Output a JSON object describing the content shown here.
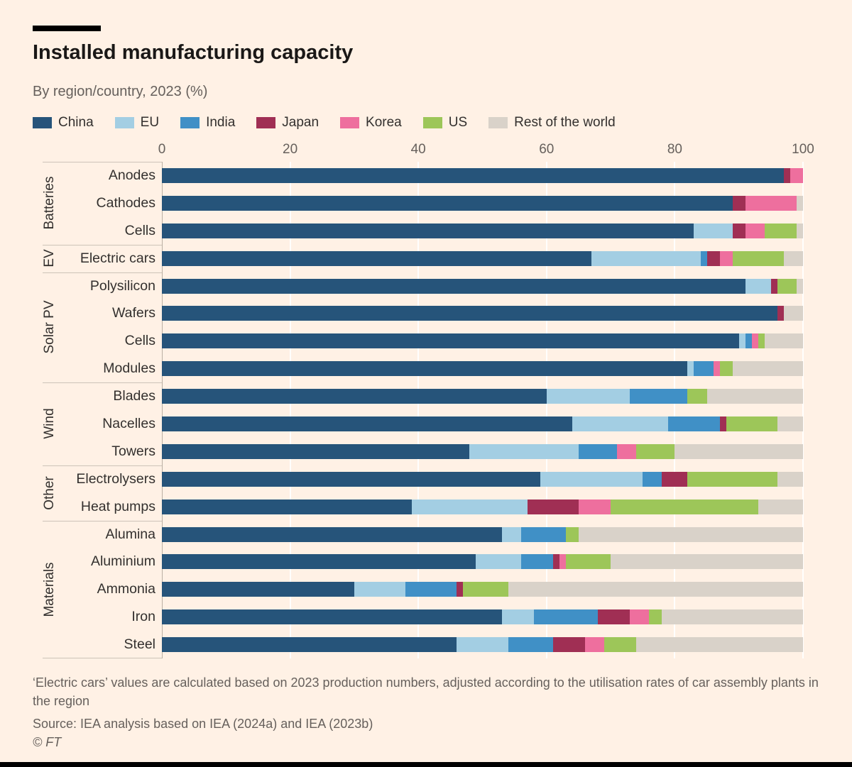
{
  "header": {
    "title": "Installed manufacturing capacity",
    "subtitle": "By region/country, 2023 (%)"
  },
  "colors": {
    "background": "#fff1e5",
    "rule": "#000000",
    "gridline": "#ffffff",
    "axis_line": "#b9afa3",
    "text_dark": "#33302e",
    "text_grey": "#66605c"
  },
  "legend": [
    {
      "label": "China",
      "color": "#26547a"
    },
    {
      "label": "EU",
      "color": "#a3cee3"
    },
    {
      "label": "India",
      "color": "#4090c6"
    },
    {
      "label": "Japan",
      "color": "#a02f54"
    },
    {
      "label": "Korea",
      "color": "#ee6f9e"
    },
    {
      "label": "US",
      "color": "#9dc659"
    },
    {
      "label": "Rest of the world",
      "color": "#d9d2c9"
    }
  ],
  "chart_data": {
    "type": "bar",
    "stacked": true,
    "orientation": "horizontal",
    "unit": "%",
    "xlim": [
      0,
      100
    ],
    "xticks": [
      0,
      20,
      40,
      60,
      80,
      100
    ],
    "grid": true,
    "legend_position": "top",
    "series": [
      "China",
      "EU",
      "India",
      "Japan",
      "Korea",
      "US",
      "Rest of the world"
    ],
    "groups": [
      {
        "label": "Batteries",
        "rows": [
          {
            "label": "Anodes",
            "values": [
              97,
              0,
              0,
              1,
              2,
              0,
              0
            ]
          },
          {
            "label": "Cathodes",
            "values": [
              89,
              0,
              0,
              2,
              8,
              0,
              1
            ]
          },
          {
            "label": "Cells",
            "values": [
              83,
              6,
              0,
              2,
              3,
              5,
              1
            ]
          }
        ]
      },
      {
        "label": "EV",
        "rows": [
          {
            "label": "Electric cars",
            "values": [
              67,
              17,
              1,
              2,
              2,
              8,
              3
            ]
          }
        ]
      },
      {
        "label": "Solar PV",
        "rows": [
          {
            "label": "Polysilicon",
            "values": [
              91,
              4,
              0,
              1,
              0,
              3,
              1
            ]
          },
          {
            "label": "Wafers",
            "values": [
              96,
              0,
              0,
              1,
              0,
              0,
              3
            ]
          },
          {
            "label": "Cells",
            "values": [
              90,
              1,
              1,
              0,
              1,
              1,
              6
            ]
          },
          {
            "label": "Modules",
            "values": [
              82,
              1,
              3,
              0,
              1,
              2,
              11
            ]
          }
        ]
      },
      {
        "label": "Wind",
        "rows": [
          {
            "label": "Blades",
            "values": [
              60,
              13,
              9,
              0,
              0,
              3,
              15
            ]
          },
          {
            "label": "Nacelles",
            "values": [
              64,
              15,
              8,
              1,
              0,
              8,
              4
            ]
          },
          {
            "label": "Towers",
            "values": [
              48,
              17,
              6,
              0,
              3,
              6,
              20
            ]
          }
        ]
      },
      {
        "label": "Other",
        "rows": [
          {
            "label": "Electrolysers",
            "values": [
              59,
              16,
              3,
              4,
              0,
              14,
              4
            ]
          },
          {
            "label": "Heat pumps",
            "values": [
              39,
              18,
              0,
              8,
              5,
              23,
              7
            ]
          }
        ]
      },
      {
        "label": "Materials",
        "rows": [
          {
            "label": "Alumina",
            "values": [
              53,
              3,
              7,
              0,
              0,
              2,
              35
            ]
          },
          {
            "label": "Aluminium",
            "values": [
              49,
              7,
              5,
              1,
              1,
              7,
              30
            ]
          },
          {
            "label": "Ammonia",
            "values": [
              30,
              8,
              8,
              1,
              0,
              7,
              46
            ]
          },
          {
            "label": "Iron",
            "values": [
              53,
              5,
              10,
              5,
              3,
              2,
              22
            ]
          },
          {
            "label": "Steel",
            "values": [
              46,
              8,
              7,
              5,
              3,
              5,
              26
            ]
          }
        ]
      }
    ]
  },
  "footer": {
    "note": "‘Electric cars’ values are calculated based on 2023 production numbers, adjusted according to the utilisation rates of car assembly plants in the region",
    "source": "Source: IEA analysis based on IEA (2024a) and IEA (2023b)",
    "copyright": "© FT"
  }
}
